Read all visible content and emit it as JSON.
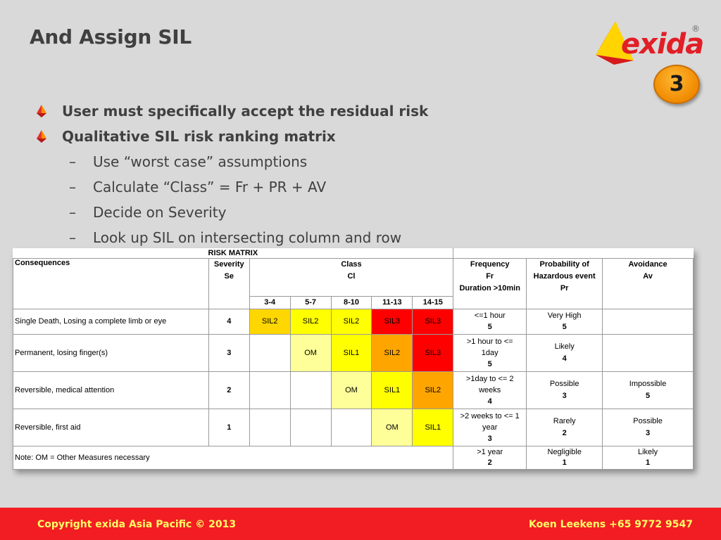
{
  "slide": {
    "title": "And Assign SIL",
    "badge": "3",
    "logo_text": "exida",
    "logo_reg": "®"
  },
  "bullets": [
    "User must specifically accept the residual risk",
    "Qualitative SIL risk ranking matrix"
  ],
  "sub_bullets": [
    "Use “worst case” assumptions",
    "Calculate “Class” = Fr + PR + AV",
    "Decide on Severity",
    "Look up SIL on intersecting column and row"
  ],
  "matrix": {
    "title": "RISK MATRIX",
    "h_consequences": "Consequences",
    "h_severity": [
      "Severity",
      "Se"
    ],
    "h_class": [
      "Class",
      "Cl"
    ],
    "h_frequency": [
      "Frequency",
      "Fr",
      "Duration >10min"
    ],
    "h_probability": [
      "Probability of",
      "Hazardous event",
      "Pr"
    ],
    "h_avoidance": [
      "Avoidance",
      "Av"
    ],
    "class_cols": [
      "3-4",
      "5-7",
      "8-10",
      "11-13",
      "14-15"
    ],
    "rows": [
      {
        "consequence": "Single Death, Losing a complete limb or eye",
        "severity": "4",
        "cells": [
          "SIL2",
          "SIL2",
          "SIL2",
          "SIL3",
          "SIL3"
        ],
        "freq": [
          "<=1 hour",
          "5"
        ],
        "prob": [
          "Very High",
          "5"
        ],
        "avoid": [
          "",
          ""
        ]
      },
      {
        "consequence": "Permanent, losing finger(s)",
        "severity": "3",
        "cells": [
          "",
          "OM",
          "SIL1",
          "SIL2",
          "SIL3"
        ],
        "freq": [
          ">1 hour to <=",
          "1day",
          "5"
        ],
        "prob": [
          "Likely",
          "4"
        ],
        "avoid": [
          "",
          ""
        ]
      },
      {
        "consequence": "Reversible, medical attention",
        "severity": "2",
        "cells": [
          "",
          "",
          "OM",
          "SIL1",
          "SIL2"
        ],
        "freq": [
          ">1day to <= 2",
          "weeks",
          "4"
        ],
        "prob": [
          "Possible",
          "3"
        ],
        "avoid": [
          "Impossible",
          "5"
        ]
      },
      {
        "consequence": "Reversible, first aid",
        "severity": "1",
        "cells": [
          "",
          "",
          "",
          "OM",
          "SIL1"
        ],
        "freq": [
          ">2 weeks to <= 1",
          "year",
          "3"
        ],
        "prob": [
          "Rarely",
          "2"
        ],
        "avoid": [
          "Possible",
          "3"
        ]
      }
    ],
    "note": "Note: OM = Other Measures necessary",
    "last_row": {
      "freq": [
        ">1 year",
        "2"
      ],
      "prob": [
        "Negligible",
        "1"
      ],
      "avoid": [
        "Likely",
        "1"
      ]
    }
  },
  "footer": {
    "left": "Copyright exida Asia Pacific © 2013",
    "right": "Koen Leekens +65 9772 9547"
  },
  "colors": {
    "footer_bg": "#f21d22",
    "footer_text": "#ffff66",
    "sil1": "#ffff00",
    "sil2": "#ffa500",
    "sil3": "#ff0000",
    "om": "#ffff99",
    "badge": "#f5a000"
  }
}
